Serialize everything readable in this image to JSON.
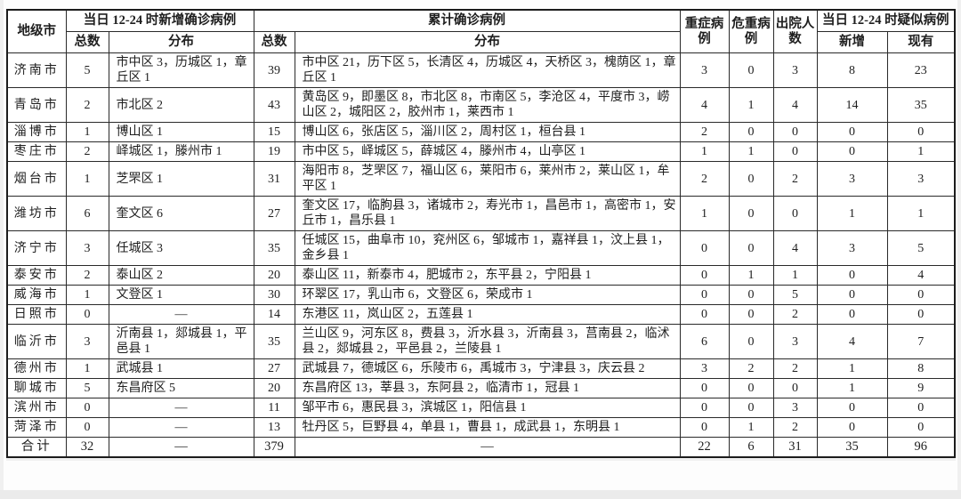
{
  "table": {
    "header": {
      "city": "地级市",
      "new_confirmed_group": "当日 12-24 时新增确诊病例",
      "cumulative_group": "累计确诊病例",
      "total": "总数",
      "distribution": "分布",
      "total2": "总数",
      "distribution2": "分布",
      "severe": "重症病例",
      "critical": "危重病例",
      "discharged": "出院人数",
      "suspected_group": "当日 12-24 时疑似病例",
      "suspected_new": "新增",
      "suspected_existing": "现有"
    },
    "rows": [
      [
        "济南市",
        "5",
        "市中区 3，历城区 1，章丘区 1",
        "39",
        "市中区 21，历下区 5，长清区 4，历城区 4，天桥区 3，槐荫区 1，章丘区 1",
        "3",
        "0",
        "3",
        "8",
        "23"
      ],
      [
        "青岛市",
        "2",
        "市北区 2",
        "43",
        "黄岛区 9，即墨区 8，市北区 8，市南区 5，李沧区 4，平度市 3，崂山区 2，城阳区 2，胶州市 1，莱西市 1",
        "4",
        "1",
        "4",
        "14",
        "35"
      ],
      [
        "淄博市",
        "1",
        "博山区 1",
        "15",
        "博山区 6，张店区 5，淄川区 2，周村区 1，桓台县 1",
        "2",
        "0",
        "0",
        "0",
        "0"
      ],
      [
        "枣庄市",
        "2",
        "峄城区 1，滕州市 1",
        "19",
        "市中区 5，峄城区 5，薛城区 4，滕州市 4，山亭区 1",
        "1",
        "1",
        "0",
        "0",
        "1"
      ],
      [
        "烟台市",
        "1",
        "芝罘区 1",
        "31",
        "海阳市 8，芝罘区 7，福山区 6，莱阳市 6，莱州市 2，莱山区 1，牟平区 1",
        "2",
        "0",
        "2",
        "3",
        "3"
      ],
      [
        "潍坊市",
        "6",
        "奎文区 6",
        "27",
        "奎文区 17，临朐县 3，诸城市 2，寿光市 1，昌邑市 1，高密市 1，安丘市 1，昌乐县 1",
        "1",
        "0",
        "0",
        "1",
        "1"
      ],
      [
        "济宁市",
        "3",
        "任城区 3",
        "35",
        "任城区 15，曲阜市 10，兖州区 6，邹城市 1，嘉祥县 1，汶上县 1，金乡县 1",
        "0",
        "0",
        "4",
        "3",
        "5"
      ],
      [
        "泰安市",
        "2",
        "泰山区 2",
        "20",
        "泰山区 11，新泰市 4，肥城市 2，东平县 2，宁阳县 1",
        "0",
        "1",
        "1",
        "0",
        "4"
      ],
      [
        "威海市",
        "1",
        "文登区 1",
        "30",
        "环翠区 17，乳山市 6，文登区 6，荣成市 1",
        "0",
        "0",
        "5",
        "0",
        "0"
      ],
      [
        "日照市",
        "0",
        "—",
        "14",
        "东港区 11，岚山区 2，五莲县 1",
        "0",
        "0",
        "2",
        "0",
        "0"
      ],
      [
        "临沂市",
        "3",
        "沂南县 1，郯城县 1，平邑县 1",
        "35",
        "兰山区 9，河东区 8，费县 3，沂水县 3，沂南县 3，莒南县 2，临沭县 2，郯城县 2，平邑县 2，兰陵县 1",
        "6",
        "0",
        "3",
        "4",
        "7"
      ],
      [
        "德州市",
        "1",
        "武城县 1",
        "27",
        "武城县 7，德城区 6，乐陵市 6，禹城市 3，宁津县 3，庆云县 2",
        "3",
        "2",
        "2",
        "1",
        "8"
      ],
      [
        "聊城市",
        "5",
        "东昌府区 5",
        "20",
        "东昌府区 13，莘县 3，东阿县 2，临清市 1，冠县 1",
        "0",
        "0",
        "0",
        "1",
        "9"
      ],
      [
        "滨州市",
        "0",
        "—",
        "11",
        "邹平市 6，惠民县 3，滨城区 1，阳信县 1",
        "0",
        "0",
        "3",
        "0",
        "0"
      ],
      [
        "菏泽市",
        "0",
        "—",
        "13",
        "牡丹区 5，巨野县 4，单县 1，曹县 1，成武县 1，东明县 1",
        "0",
        "1",
        "2",
        "0",
        "0"
      ]
    ],
    "total_row": [
      "合计",
      "32",
      "—",
      "379",
      "—",
      "22",
      "6",
      "31",
      "35",
      "96"
    ]
  }
}
